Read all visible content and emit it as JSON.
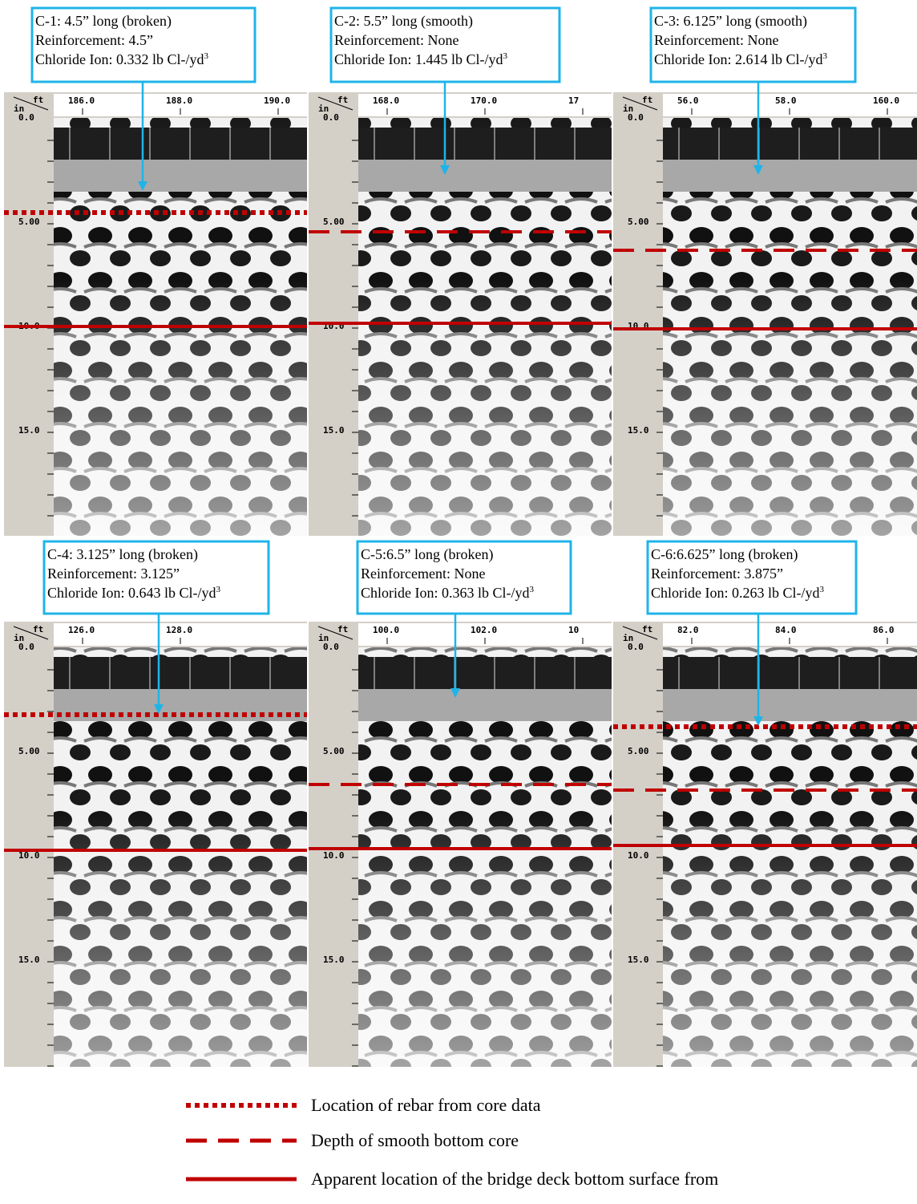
{
  "panels": [
    {
      "callout": {
        "line1": "C-1: 4.5” long (broken)",
        "line2": "Reinforcement: 4.5”",
        "line3": "Chloride Ion: 0.332 lb Cl-/yd",
        "sup": "3"
      },
      "y_unit": "in",
      "x_unit": "ft",
      "x_ticks": [
        "186.0",
        "188.0",
        "190.0"
      ],
      "y_ticks": [
        "0.0",
        "5.00",
        "10.0",
        "15.0"
      ]
    },
    {
      "callout": {
        "line1": "C-2: 5.5” long (smooth)",
        "line2": "Reinforcement: None",
        "line3": "Chloride Ion: 1.445 lb Cl-/yd",
        "sup": "3"
      },
      "y_unit": "in",
      "x_unit": "ft",
      "x_ticks": [
        "168.0",
        "170.0",
        "17"
      ],
      "y_ticks": [
        "0.0",
        "5.00",
        "10.0",
        "15.0"
      ]
    },
    {
      "callout": {
        "line1": "C-3: 6.125” long (smooth)",
        "line2": "Reinforcement: None",
        "line3": "Chloride Ion: 2.614 lb Cl-/yd",
        "sup": "3"
      },
      "y_unit": "in",
      "x_unit": "ft",
      "x_ticks": [
        "56.0",
        "58.0",
        "160.0"
      ],
      "y_ticks": [
        "0.0",
        "5.00",
        "10.0",
        "15.0"
      ]
    },
    {
      "callout": {
        "line1": "C-4: 3.125” long (broken)",
        "line2": "Reinforcement: 3.125”",
        "line3": "Chloride Ion: 0.643 lb Cl-/yd",
        "sup": "3"
      },
      "y_unit": "in",
      "x_unit": "ft",
      "x_ticks": [
        "126.0",
        "128.0"
      ],
      "y_ticks": [
        "0.0",
        "5.00",
        "10.0",
        "15.0"
      ]
    },
    {
      "callout": {
        "line1": "C-5:6.5” long (broken)",
        "line2": "Reinforcement: None",
        "line3": "Chloride Ion: 0.363 lb Cl-/yd",
        "sup": "3"
      },
      "y_unit": "in",
      "x_unit": "ft",
      "x_ticks": [
        "100.0",
        "102.0",
        "10"
      ],
      "y_ticks": [
        "0.0",
        "5.00",
        "10.0",
        "15.0"
      ]
    },
    {
      "callout": {
        "line1": "C-6:6.625” long (broken)",
        "line2": "Reinforcement: 3.875”",
        "line3": "Chloride Ion: 0.263 lb Cl-/yd",
        "sup": "3"
      },
      "y_unit": "in",
      "x_unit": "ft",
      "x_ticks": [
        "82.0",
        "84.0",
        "86.0"
      ],
      "y_ticks": [
        "0.0",
        "5.00",
        "10.0",
        "15.0"
      ]
    }
  ],
  "legend": [
    "Location of rebar from core data",
    "Depth of smooth bottom core",
    "Apparent location of the bridge deck bottom surface from"
  ]
}
